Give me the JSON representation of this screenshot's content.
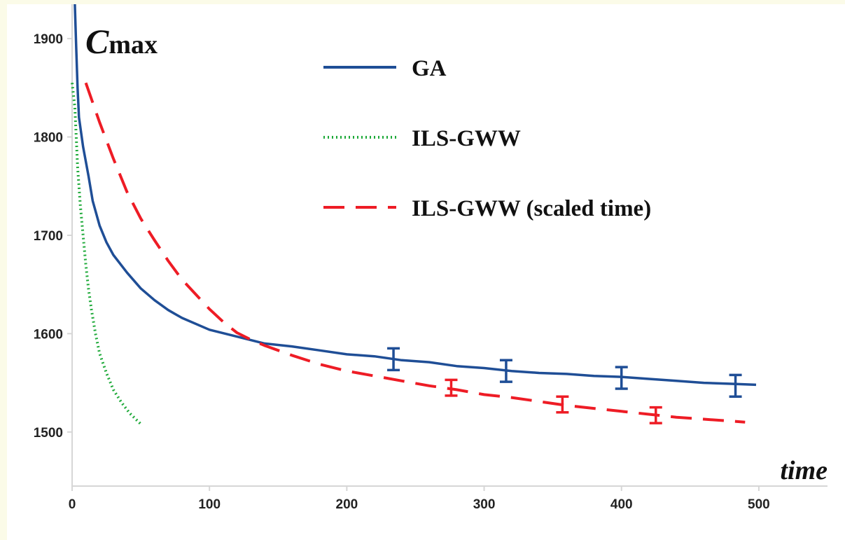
{
  "chart_data": {
    "type": "line",
    "title": "",
    "xlabel": "time",
    "ylabel": {
      "main": "C",
      "sub": "max"
    },
    "xlim": [
      0,
      550
    ],
    "ylim": [
      1445,
      1935
    ],
    "x_ticks": [
      "0",
      "100",
      "200",
      "300",
      "400",
      "500"
    ],
    "y_ticks": [
      "1500",
      "1600",
      "1700",
      "1800",
      "1900"
    ],
    "grid": false,
    "legend_position": "top-right",
    "series": [
      {
        "name": "GA",
        "color": "#1f4e96",
        "style": "solid",
        "points": [
          [
            2,
            1935
          ],
          [
            3,
            1890
          ],
          [
            4,
            1850
          ],
          [
            5,
            1820
          ],
          [
            8,
            1790
          ],
          [
            12,
            1760
          ],
          [
            15,
            1735
          ],
          [
            20,
            1710
          ],
          [
            25,
            1693
          ],
          [
            30,
            1680
          ],
          [
            40,
            1662
          ],
          [
            50,
            1646
          ],
          [
            60,
            1634
          ],
          [
            70,
            1624
          ],
          [
            80,
            1616
          ],
          [
            100,
            1604
          ],
          [
            120,
            1597
          ],
          [
            140,
            1590
          ],
          [
            160,
            1587
          ],
          [
            180,
            1583
          ],
          [
            200,
            1579
          ],
          [
            220,
            1577
          ],
          [
            240,
            1573
          ],
          [
            260,
            1571
          ],
          [
            280,
            1567
          ],
          [
            300,
            1565
          ],
          [
            320,
            1562
          ],
          [
            340,
            1560
          ],
          [
            360,
            1559
          ],
          [
            380,
            1557
          ],
          [
            400,
            1556
          ],
          [
            420,
            1554
          ],
          [
            440,
            1552
          ],
          [
            460,
            1550
          ],
          [
            480,
            1549
          ],
          [
            498,
            1548
          ]
        ],
        "error_bars": [
          [
            234,
            1574,
            11
          ],
          [
            316,
            1562,
            11
          ],
          [
            400,
            1555,
            11
          ],
          [
            483,
            1547,
            11
          ]
        ]
      },
      {
        "name": "ILS-GWW",
        "color": "#1faa3a",
        "style": "dotted",
        "points": [
          [
            0,
            1855
          ],
          [
            2,
            1830
          ],
          [
            3,
            1800
          ],
          [
            4,
            1770
          ],
          [
            6,
            1730
          ],
          [
            8,
            1700
          ],
          [
            10,
            1670
          ],
          [
            12,
            1645
          ],
          [
            14,
            1625
          ],
          [
            17,
            1600
          ],
          [
            20,
            1580
          ],
          [
            25,
            1560
          ],
          [
            30,
            1543
          ],
          [
            36,
            1530
          ],
          [
            42,
            1519
          ],
          [
            50,
            1508
          ]
        ]
      },
      {
        "name": "ILS-GWW (scaled time)",
        "color": "#ee1c25",
        "style": "dashed",
        "points": [
          [
            10,
            1855
          ],
          [
            20,
            1815
          ],
          [
            30,
            1778
          ],
          [
            40,
            1744
          ],
          [
            50,
            1717
          ],
          [
            60,
            1695
          ],
          [
            70,
            1674
          ],
          [
            80,
            1655
          ],
          [
            90,
            1640
          ],
          [
            100,
            1625
          ],
          [
            110,
            1612
          ],
          [
            120,
            1601
          ],
          [
            130,
            1594
          ],
          [
            140,
            1588
          ],
          [
            160,
            1578
          ],
          [
            180,
            1569
          ],
          [
            200,
            1562
          ],
          [
            220,
            1557
          ],
          [
            240,
            1552
          ],
          [
            260,
            1547
          ],
          [
            280,
            1543
          ],
          [
            300,
            1538
          ],
          [
            320,
            1535
          ],
          [
            340,
            1531
          ],
          [
            360,
            1527
          ],
          [
            380,
            1524
          ],
          [
            400,
            1521
          ],
          [
            420,
            1518
          ],
          [
            440,
            1515
          ],
          [
            460,
            1513
          ],
          [
            480,
            1511
          ],
          [
            490,
            1510
          ]
        ],
        "error_bars": [
          [
            276,
            1545,
            8
          ],
          [
            357,
            1528,
            8
          ],
          [
            425,
            1517,
            8
          ]
        ]
      }
    ]
  }
}
